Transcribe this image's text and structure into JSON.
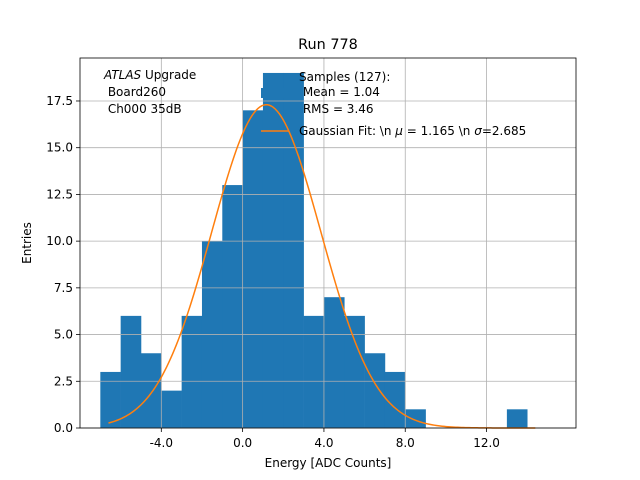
{
  "chart_data": {
    "type": "bar",
    "title": "Run 778",
    "xlabel": "Energy [ADC Counts]",
    "ylabel": "Entries",
    "xlim": [
      -8,
      16.4
    ],
    "ylim": [
      0,
      19.8
    ],
    "xticks": [
      -4,
      0,
      4,
      8,
      12
    ],
    "xtick_labels": [
      "-4.0",
      "0.0",
      "4.0",
      "8.0",
      "12.0"
    ],
    "yticks": [
      0,
      2.5,
      5,
      7.5,
      10,
      12.5,
      15,
      17.5
    ],
    "ytick_labels": [
      "0.0",
      "2.5",
      "5.0",
      "7.5",
      "10.0",
      "12.5",
      "15.0",
      "17.5"
    ],
    "grid": true,
    "bar_color": "#1f77b4",
    "fit_color": "#ff7f0e",
    "histogram": {
      "bin_start": -7,
      "bin_width": 1,
      "counts": [
        3,
        6,
        4,
        2,
        6,
        10,
        13,
        17,
        19,
        19,
        6,
        7,
        6,
        4,
        3,
        1,
        0,
        0,
        0,
        0,
        1
      ]
    },
    "fit": {
      "mu": 1.165,
      "sigma": 2.685,
      "amplitude": 17.3,
      "x_range": [
        -6.6,
        14.4
      ]
    },
    "annotation": {
      "prefix_italic": "ATLAS",
      "prefix_rest": " Upgrade",
      "line2": " Board260",
      "line3": " Ch000 35dB"
    },
    "legend": {
      "placement": "top-right",
      "hist_line1": "Samples (127):",
      "hist_line2": " Mean = 1.04",
      "hist_line3": " RMS = 3.46",
      "fit_pre": "Gaussian Fit: \\n ",
      "fit_mu_symbol": "μ",
      "fit_mid": " = 1.165 \\n ",
      "fit_sigma_symbol": "σ",
      "fit_post": "=2.685"
    }
  }
}
